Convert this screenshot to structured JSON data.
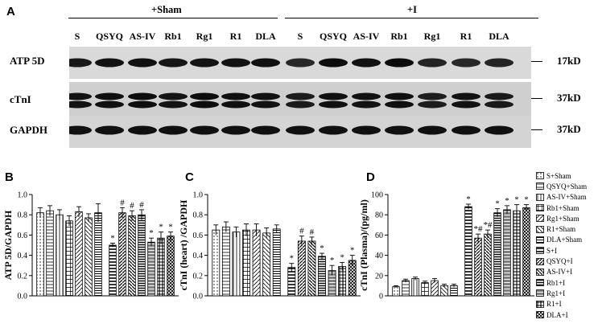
{
  "panel_a": {
    "letter": "A",
    "group_labels": [
      "+Sham",
      "+I"
    ],
    "lanes": [
      "S",
      "QSYQ",
      "AS-IV",
      "Rb1",
      "Rg1",
      "R1",
      "DLA",
      "S",
      "QSYQ",
      "AS-IV",
      "Rb1",
      "Rg1",
      "R1",
      "DLA"
    ],
    "blots": [
      {
        "name": "ATP 5D",
        "kd": "17kD",
        "intensity": [
          0.72,
          0.8,
          0.8,
          0.75,
          0.78,
          0.8,
          0.82,
          0.55,
          0.85,
          0.8,
          0.88,
          0.6,
          0.55,
          0.6
        ]
      },
      {
        "name": "cTnI",
        "kd": "37kD",
        "intensity": [
          0.8,
          0.82,
          0.85,
          0.78,
          0.85,
          0.82,
          0.8,
          0.7,
          0.82,
          0.8,
          0.82,
          0.68,
          0.8,
          0.72
        ]
      },
      {
        "name": "GAPDH",
        "kd": "37kD",
        "intensity": [
          0.82,
          0.82,
          0.82,
          0.82,
          0.82,
          0.82,
          0.82,
          0.82,
          0.82,
          0.82,
          0.82,
          0.82,
          0.82,
          0.82
        ]
      }
    ]
  },
  "legend": {
    "entries": [
      "S+Sham",
      "QSYQ+Sham",
      "AS-IV+Sham",
      "Rb1+Sham",
      "Rg1+Sham",
      "R1+Sham",
      "DLA+Sham",
      "S+I",
      "QSYQ+I",
      "AS-IV+I",
      "Rb1+I",
      "Rg1+I",
      "R1+I",
      "DLA+I"
    ]
  },
  "chart_data": [
    {
      "panel": "B",
      "type": "bar",
      "ylabel": "ATP 5D/GAPDH",
      "ylim": [
        0,
        1.0
      ],
      "yticks": [
        "0.0",
        "0.2",
        "0.4",
        "0.6",
        "0.8",
        "1.0"
      ],
      "categories": [
        "S+Sham",
        "QSYQ+Sham",
        "AS-IV+Sham",
        "Rb1+Sham",
        "Rg1+Sham",
        "R1+Sham",
        "DLA+Sham",
        "S+I",
        "QSYQ+I",
        "AS-IV+I",
        "Rb1+I",
        "Rg1+I",
        "R1+I",
        "DLA+I"
      ],
      "values": [
        0.82,
        0.84,
        0.8,
        0.74,
        0.83,
        0.77,
        0.82,
        0.5,
        0.82,
        0.79,
        0.8,
        0.53,
        0.57,
        0.59
      ],
      "errors": [
        0.05,
        0.05,
        0.05,
        0.05,
        0.05,
        0.04,
        0.09,
        0.02,
        0.05,
        0.05,
        0.05,
        0.04,
        0.06,
        0.04
      ],
      "annotations": [
        "",
        "",
        "",
        "",
        "",
        "",
        "",
        "*",
        "#",
        "#",
        "#",
        "*",
        "*",
        "*"
      ]
    },
    {
      "panel": "C",
      "type": "bar",
      "ylabel": "cTnI (heart) /GAPDH",
      "ylim": [
        0,
        1.0
      ],
      "yticks": [
        "0.0",
        "0.2",
        "0.4",
        "0.6",
        "0.8",
        "1.0"
      ],
      "categories": [
        "S+Sham",
        "QSYQ+Sham",
        "AS-IV+Sham",
        "Rb1+Sham",
        "Rg1+Sham",
        "R1+Sham",
        "DLA+Sham",
        "S+I",
        "QSYQ+I",
        "AS-IV+I",
        "Rb1+I",
        "Rg1+I",
        "R1+I",
        "DLA+I"
      ],
      "values": [
        0.65,
        0.68,
        0.63,
        0.65,
        0.65,
        0.62,
        0.66,
        0.28,
        0.54,
        0.54,
        0.39,
        0.25,
        0.29,
        0.35
      ],
      "errors": [
        0.05,
        0.05,
        0.05,
        0.06,
        0.06,
        0.05,
        0.04,
        0.04,
        0.05,
        0.04,
        0.03,
        0.05,
        0.04,
        0.05
      ],
      "annotations": [
        "",
        "",
        "",
        "",
        "",
        "",
        "",
        "*",
        "#",
        "#",
        "*",
        "*",
        "*",
        "*"
      ]
    },
    {
      "panel": "D",
      "type": "bar",
      "ylabel": "cTnI (Plasma)/(pg/ml)",
      "ylim": [
        0,
        100
      ],
      "yticks": [
        "0",
        "20",
        "40",
        "60",
        "80",
        "100"
      ],
      "categories": [
        "S+Sham",
        "QSYQ+Sham",
        "AS-IV+Sham",
        "Rb1+Sham",
        "Rg1+Sham",
        "R1+Sham",
        "DLA+Sham",
        "S+I",
        "QSYQ+I",
        "AS-IV+I",
        "Rb1+I",
        "Rg1+I",
        "R1+I",
        "DLA+I"
      ],
      "values": [
        9,
        15,
        17,
        13,
        15,
        10,
        10,
        88,
        57,
        61,
        82,
        85,
        84,
        87
      ],
      "errors": [
        1,
        1.5,
        1.5,
        1.5,
        2,
        1.5,
        1.5,
        2.5,
        4,
        4,
        4,
        4,
        6,
        3
      ],
      "annotations": [
        "",
        "",
        "",
        "",
        "",
        "",
        "",
        "*",
        "*#",
        "*#",
        "*",
        "*",
        "*",
        "*"
      ]
    }
  ]
}
